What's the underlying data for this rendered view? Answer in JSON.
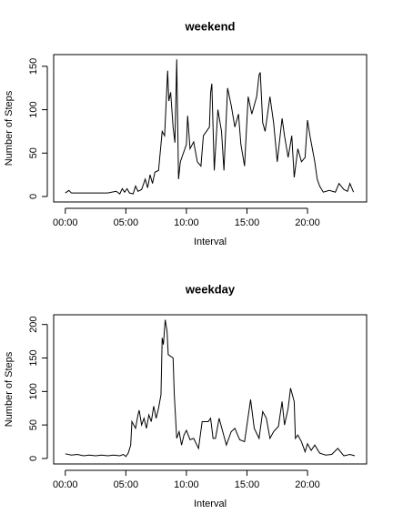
{
  "chart_data": [
    {
      "type": "line",
      "title": "weekend",
      "x_label": "Interval",
      "y_label": "Number of Steps",
      "color": "#000000",
      "xlim": [
        -0.96,
        24.88
      ],
      "ylim": [
        -6.3,
        163.5
      ],
      "xticks": [
        {
          "value": 0,
          "label": "00:00"
        },
        {
          "value": 5,
          "label": "05:00"
        },
        {
          "value": 10,
          "label": "10:00"
        },
        {
          "value": 15,
          "label": "15:00"
        },
        {
          "value": 20,
          "label": "20:00"
        }
      ],
      "yticks": [
        0,
        50,
        100,
        150
      ],
      "x": [
        0,
        0.3,
        0.5,
        2,
        3.5,
        4.2,
        4.5,
        4.7,
        4.9,
        5.1,
        5.3,
        5.6,
        5.8,
        6.0,
        6.3,
        6.6,
        6.8,
        7.0,
        7.2,
        7.4,
        7.7,
        8.0,
        8.2,
        8.35,
        8.45,
        8.55,
        8.7,
        8.9,
        9.05,
        9.2,
        9.35,
        9.5,
        10.0,
        10.1,
        10.3,
        10.6,
        10.9,
        11.2,
        11.4,
        11.9,
        12.0,
        12.1,
        12.3,
        12.6,
        12.9,
        13.1,
        13.4,
        13.7,
        14.0,
        14.3,
        14.5,
        14.8,
        15.1,
        15.4,
        15.8,
        16.0,
        16.1,
        16.3,
        16.5,
        16.9,
        17.2,
        17.5,
        17.9,
        18.1,
        18.4,
        18.7,
        18.9,
        19.2,
        19.5,
        19.8,
        20.0,
        20.2,
        20.4,
        20.6,
        20.8,
        21.0,
        21.3,
        21.8,
        22.3,
        22.6,
        23.0,
        23.3,
        23.5,
        23.8
      ],
      "values": [
        4,
        7,
        4,
        4,
        4,
        6,
        3,
        9,
        5,
        9,
        4,
        3,
        12,
        6,
        8,
        20,
        10,
        25,
        15,
        28,
        30,
        75,
        70,
        115,
        145,
        110,
        120,
        80,
        62,
        158,
        20,
        40,
        60,
        93,
        55,
        63,
        40,
        35,
        70,
        80,
        120,
        130,
        30,
        100,
        75,
        30,
        125,
        105,
        80,
        95,
        60,
        35,
        115,
        95,
        115,
        140,
        143,
        85,
        75,
        115,
        85,
        40,
        90,
        70,
        45,
        70,
        22,
        55,
        40,
        45,
        88,
        70,
        55,
        40,
        20,
        12,
        5,
        7,
        5,
        15,
        8,
        6,
        15,
        5
      ]
    },
    {
      "type": "line",
      "title": "weekday",
      "x_label": "Interval",
      "y_label": "Number of Steps",
      "color": "#000000",
      "xlim": [
        -0.96,
        24.88
      ],
      "ylim": [
        -8.2,
        214.5
      ],
      "xticks": [
        {
          "value": 0,
          "label": "00:00"
        },
        {
          "value": 5,
          "label": "05:00"
        },
        {
          "value": 10,
          "label": "10:00"
        },
        {
          "value": 15,
          "label": "15:00"
        },
        {
          "value": 20,
          "label": "20:00"
        }
      ],
      "yticks": [
        0,
        50,
        100,
        150,
        200
      ],
      "x": [
        0,
        0.5,
        1,
        1.5,
        2,
        2.5,
        3,
        3.5,
        4,
        4.5,
        4.8,
        5.0,
        5.2,
        5.4,
        5.5,
        5.8,
        6.0,
        6.1,
        6.3,
        6.5,
        6.7,
        6.9,
        7.1,
        7.3,
        7.5,
        7.7,
        7.9,
        8.0,
        8.1,
        8.25,
        8.4,
        8.5,
        8.9,
        9.0,
        9.2,
        9.4,
        9.6,
        9.8,
        10.0,
        10.3,
        10.6,
        11.0,
        11.3,
        11.8,
        12.0,
        12.2,
        12.4,
        12.7,
        13.0,
        13.3,
        13.7,
        14.0,
        14.4,
        14.8,
        15.0,
        15.3,
        15.6,
        16.0,
        16.3,
        16.6,
        16.9,
        17.2,
        17.6,
        17.9,
        18.1,
        18.4,
        18.6,
        18.9,
        19.0,
        19.2,
        19.5,
        19.8,
        20.0,
        20.3,
        20.6,
        21.0,
        21.5,
        22.0,
        22.5,
        23.0,
        23.5,
        23.9
      ],
      "values": [
        7,
        5,
        6,
        4,
        5,
        4,
        5,
        4,
        5,
        4,
        6,
        3,
        8,
        20,
        55,
        45,
        65,
        72,
        50,
        60,
        45,
        65,
        55,
        78,
        60,
        75,
        95,
        180,
        170,
        207,
        190,
        155,
        150,
        95,
        30,
        40,
        20,
        35,
        42,
        28,
        30,
        15,
        55,
        55,
        60,
        30,
        30,
        60,
        40,
        20,
        40,
        45,
        28,
        25,
        50,
        88,
        45,
        30,
        70,
        60,
        30,
        40,
        48,
        85,
        50,
        75,
        105,
        85,
        30,
        35,
        25,
        10,
        22,
        12,
        20,
        8,
        5,
        6,
        15,
        4,
        6,
        4
      ]
    }
  ]
}
